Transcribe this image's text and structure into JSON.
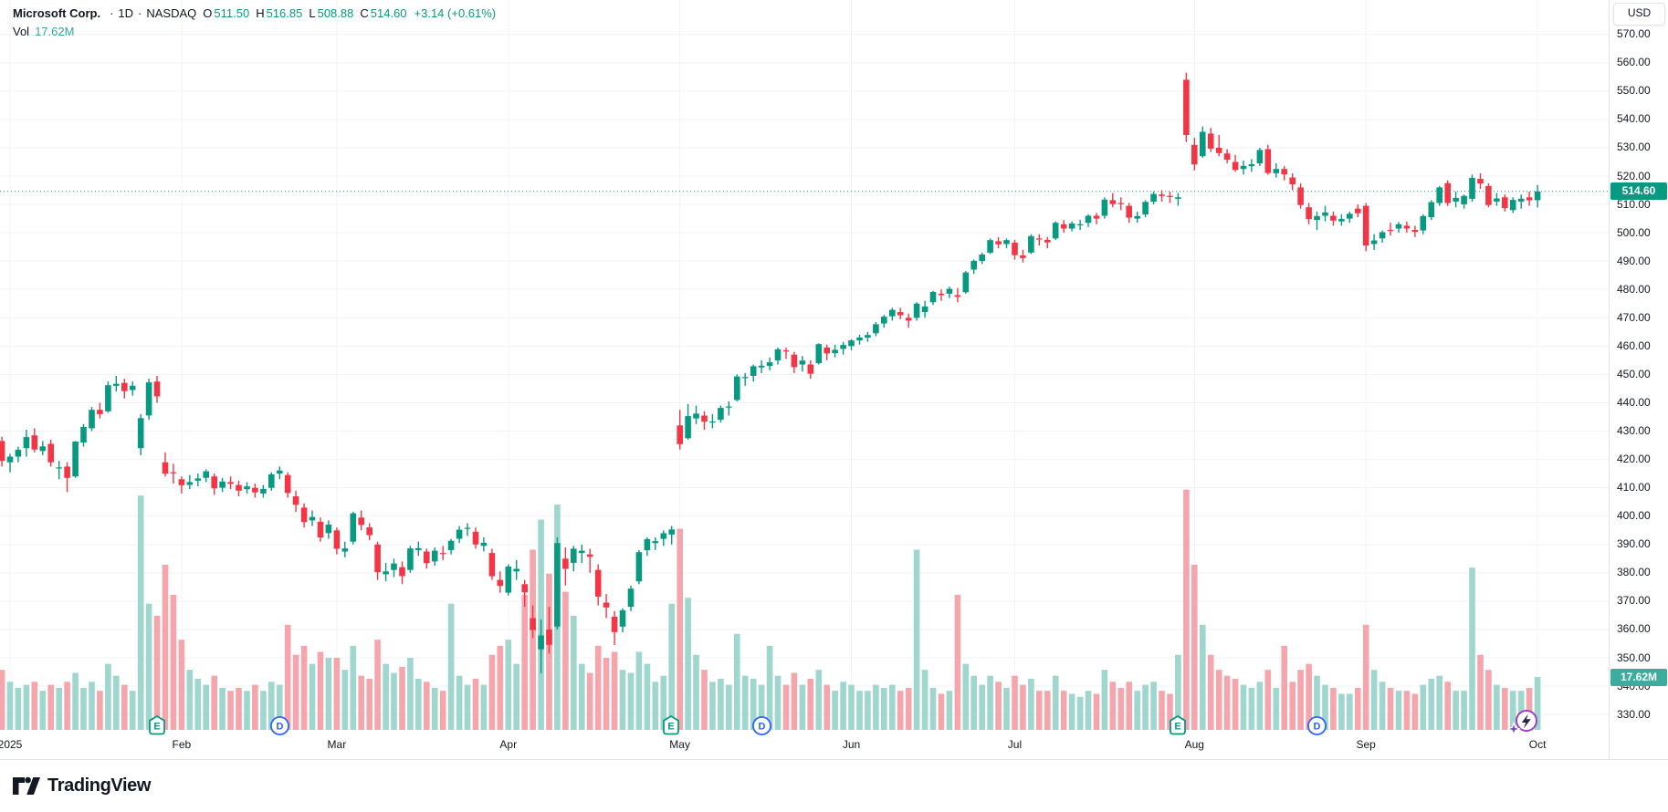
{
  "legend": {
    "name": "Microsoft Corp.",
    "dot1": "·",
    "timeframe": "1D",
    "dot2": "·",
    "exchange": "NASDAQ",
    "ohlc": [
      {
        "k": "O",
        "v": "511.50"
      },
      {
        "k": "H",
        "v": "516.85"
      },
      {
        "k": "L",
        "v": "508.88"
      },
      {
        "k": "C",
        "v": "514.60"
      }
    ],
    "change": "+3.14 (+0.61%)",
    "vol_label": "Vol",
    "vol_value": "17.62M"
  },
  "axis": {
    "currency_button": "USD",
    "price_badge": "514.60",
    "volume_badge": "17.62M"
  },
  "footer": {
    "brand": "TradingView"
  },
  "colors": {
    "up": "#089981",
    "down": "#F23645",
    "vol_up": "#9FD6CE",
    "vol_down": "#F5A6AD",
    "grid": "#F0F3FA",
    "axis_text": "#131722",
    "border": "#E0E3EB",
    "price_badge_bg": "#089981",
    "volume_badge_bg": "#3BAC9E",
    "legend_value": "#089981",
    "legend_vol_value": "#2DAB9C",
    "dividend_marker": "#2962FF",
    "earnings_marker": "#089981",
    "event_marker": "#A13FC1"
  },
  "chart_data": {
    "type": "candlestick",
    "title": "Microsoft Corp. · 1D · NASDAQ",
    "legend_ohlc": {
      "open": 511.5,
      "high": 516.85,
      "low": 508.88,
      "close": 514.6,
      "change": 3.14,
      "change_pct": 0.61,
      "volume": "17.62M"
    },
    "y_axis": {
      "currency": "USD",
      "min": 330,
      "max": 570,
      "step": 10
    },
    "x_axis_labels": [
      "2025",
      "Feb",
      "Mar",
      "Apr",
      "May",
      "Jun",
      "Jul",
      "Aug",
      "Sep",
      "Oct"
    ],
    "last_price": 514.6,
    "last_volume_millions": 17.62,
    "grid": true,
    "months": [
      {
        "label": "2025",
        "index": 2
      },
      {
        "label": "Feb",
        "index": 23
      },
      {
        "label": "Mar",
        "index": 42
      },
      {
        "label": "Apr",
        "index": 63
      },
      {
        "label": "May",
        "index": 84
      },
      {
        "label": "Jun",
        "index": 105
      },
      {
        "label": "Jul",
        "index": 125
      },
      {
        "label": "Aug",
        "index": 147
      },
      {
        "label": "Sep",
        "index": 168
      },
      {
        "label": "Oct",
        "index": 189
      }
    ],
    "markers": [
      {
        "type": "earnings",
        "glyph": "E",
        "index": 20
      },
      {
        "type": "dividend",
        "glyph": "D",
        "index": 35
      },
      {
        "type": "earnings",
        "glyph": "E",
        "index": 83
      },
      {
        "type": "dividend",
        "glyph": "D",
        "index": 94
      },
      {
        "type": "earnings",
        "glyph": "E",
        "index": 145
      },
      {
        "type": "dividend",
        "glyph": "D",
        "index": 162
      },
      {
        "type": "event-lightning",
        "glyph": "",
        "index": 187
      }
    ],
    "columns": [
      "open",
      "high",
      "low",
      "close",
      "volume_millions"
    ],
    "candles": [
      [
        428,
        429.5,
        424,
        426,
        18
      ],
      [
        426.5,
        428,
        417.5,
        419.5,
        20
      ],
      [
        419,
        422,
        415.5,
        421,
        16
      ],
      [
        421,
        424.5,
        419,
        423.4,
        14
      ],
      [
        424,
        430.5,
        421,
        427.9,
        15
      ],
      [
        428.5,
        431,
        422.5,
        423.5,
        16
      ],
      [
        423,
        426.5,
        421.5,
        424.6,
        13
      ],
      [
        425.5,
        427,
        417.5,
        419,
        15
      ],
      [
        417,
        419.5,
        413,
        417.2,
        14
      ],
      [
        417.5,
        419,
        408.5,
        413.5,
        16
      ],
      [
        414,
        426.5,
        413.5,
        426.3,
        19
      ],
      [
        426,
        432.5,
        424.5,
        431.5,
        14
      ],
      [
        431,
        438.5,
        430,
        437.5,
        16
      ],
      [
        437.5,
        440,
        434.5,
        436,
        13
      ],
      [
        437,
        447.5,
        436.5,
        446.2,
        22
      ],
      [
        446,
        449.5,
        444,
        446.7,
        18
      ],
      [
        447,
        448.5,
        441.5,
        444.1,
        15
      ],
      [
        444.5,
        447.5,
        442.5,
        446,
        13
      ],
      [
        424,
        436,
        421.5,
        434.6,
        78
      ],
      [
        435.5,
        448.5,
        434,
        447.2,
        42
      ],
      [
        447.5,
        449.5,
        440,
        442.3,
        38
      ],
      [
        419,
        422.5,
        414,
        415,
        55
      ],
      [
        415.5,
        418.5,
        411.5,
        415.1,
        45
      ],
      [
        413,
        414,
        408,
        410.9,
        30
      ],
      [
        411,
        414.5,
        409.5,
        412,
        20
      ],
      [
        412.5,
        415,
        410.5,
        413.3,
        17
      ],
      [
        413.5,
        416.5,
        412,
        415.8,
        15
      ],
      [
        414,
        415,
        407.5,
        409.8,
        18
      ],
      [
        410,
        413.5,
        408.5,
        412.2,
        14
      ],
      [
        412,
        414,
        409.5,
        411.4,
        13
      ],
      [
        411,
        412.5,
        407,
        409,
        14
      ],
      [
        409.5,
        412,
        408,
        410.5,
        13
      ],
      [
        410,
        411.5,
        406.5,
        408.4,
        15
      ],
      [
        408,
        411,
        406.5,
        409.6,
        13
      ],
      [
        410,
        415.5,
        409,
        414.8,
        16
      ],
      [
        415,
        417.5,
        413,
        416.1,
        15
      ],
      [
        414.5,
        415.5,
        406.5,
        408.2,
        35
      ],
      [
        407,
        409,
        401.5,
        404,
        25
      ],
      [
        403,
        404.5,
        396,
        397.9,
        28
      ],
      [
        398.5,
        402,
        396.5,
        399.7,
        22
      ],
      [
        398,
        399.5,
        391,
        392.5,
        26
      ],
      [
        394,
        398.5,
        392,
        397,
        24
      ],
      [
        395,
        396,
        386.5,
        388.5,
        24
      ],
      [
        387.5,
        391,
        385.5,
        388.6,
        20
      ],
      [
        391,
        401.5,
        390,
        401,
        28
      ],
      [
        399.5,
        402,
        395,
        396.9,
        18
      ],
      [
        396,
        397.5,
        391.5,
        393.3,
        17
      ],
      [
        390,
        391,
        377.5,
        380.2,
        30
      ],
      [
        379.5,
        383.5,
        377,
        380.5,
        22
      ],
      [
        381,
        385,
        378.5,
        383.3,
        19
      ],
      [
        382,
        384,
        376,
        378.8,
        21
      ],
      [
        381,
        389.5,
        380,
        388.6,
        24
      ],
      [
        388,
        391,
        386,
        388.7,
        17
      ],
      [
        387.5,
        388.5,
        381.5,
        383.4,
        16
      ],
      [
        384,
        389,
        382.5,
        387.8,
        14
      ],
      [
        387,
        389.5,
        384.5,
        386.8,
        13
      ],
      [
        388,
        392,
        386.5,
        391.3,
        42
      ],
      [
        392,
        396.5,
        390.5,
        395.2,
        18
      ],
      [
        395.5,
        397.5,
        393,
        395.9,
        15
      ],
      [
        394.5,
        396,
        388.5,
        390,
        17
      ],
      [
        389.5,
        392.5,
        387.5,
        390.6,
        15
      ],
      [
        387,
        388.5,
        377.5,
        378.8,
        25
      ],
      [
        377.5,
        380.5,
        373,
        375.4,
        28
      ],
      [
        373,
        383,
        372,
        382.2,
        30
      ],
      [
        380.5,
        384.5,
        377.5,
        381.4,
        22
      ],
      [
        376,
        377.5,
        368,
        373.1,
        45
      ],
      [
        364,
        368.5,
        357,
        359.8,
        60
      ],
      [
        353,
        363.5,
        344.5,
        357.9,
        70
      ],
      [
        360,
        368,
        351.5,
        354.6,
        52
      ],
      [
        361,
        392.5,
        360,
        390.5,
        75
      ],
      [
        385,
        389,
        375.5,
        381.4,
        46
      ],
      [
        383.5,
        389.5,
        380.5,
        388.5,
        38
      ],
      [
        387,
        390,
        383.5,
        387.8,
        22
      ],
      [
        386.5,
        388.5,
        380,
        385.7,
        19
      ],
      [
        381,
        383,
        368.5,
        371.6,
        28
      ],
      [
        369.5,
        372.5,
        364,
        367.8,
        24
      ],
      [
        364.5,
        366.5,
        354.5,
        359.1,
        26
      ],
      [
        361,
        367.5,
        359,
        366.8,
        20
      ],
      [
        368,
        375.5,
        366.5,
        374.4,
        19
      ],
      [
        377,
        388,
        376,
        387.3,
        26
      ],
      [
        388,
        392.5,
        386,
        391.9,
        22
      ],
      [
        390.5,
        392.5,
        388,
        391.2,
        16
      ],
      [
        392,
        395,
        389.5,
        394,
        18
      ],
      [
        393.5,
        396.5,
        390,
        395.3,
        42
      ],
      [
        432,
        437.5,
        423.5,
        425.4,
        67
      ],
      [
        427.5,
        439.5,
        427,
        435.3,
        44
      ],
      [
        434.5,
        439,
        432.5,
        436.2,
        25
      ],
      [
        435.5,
        437,
        430.5,
        433.3,
        20
      ],
      [
        433,
        436,
        431,
        433.4,
        16
      ],
      [
        434,
        439,
        433,
        438.2,
        17
      ],
      [
        438.5,
        440.5,
        435.5,
        438.7,
        15
      ],
      [
        441,
        450,
        440.5,
        449.3,
        32
      ],
      [
        449,
        450.5,
        446,
        449.1,
        18
      ],
      [
        449.5,
        453.5,
        447.5,
        452.9,
        17
      ],
      [
        452.5,
        455,
        450.5,
        453.1,
        15
      ],
      [
        453,
        456,
        451.5,
        454.3,
        28
      ],
      [
        455,
        459.5,
        453.5,
        458.9,
        18
      ],
      [
        458.5,
        459.5,
        455.5,
        458.2,
        15
      ],
      [
        457,
        458,
        450.5,
        452.6,
        19
      ],
      [
        453.5,
        456.5,
        451,
        454.9,
        15
      ],
      [
        453.5,
        455,
        448.5,
        450.2,
        17
      ],
      [
        454,
        461,
        453.5,
        460.7,
        20
      ],
      [
        459.5,
        460.5,
        455,
        457.4,
        15
      ],
      [
        457.5,
        460.5,
        456,
        458.7,
        13
      ],
      [
        459,
        461.5,
        457,
        460.4,
        16
      ],
      [
        460,
        462.5,
        458.5,
        462,
        15
      ],
      [
        462,
        464,
        460.5,
        463,
        13
      ],
      [
        463,
        465,
        461.5,
        463.9,
        13
      ],
      [
        464.5,
        468.5,
        463.5,
        467.7,
        15
      ],
      [
        468,
        471,
        466.5,
        470.4,
        14
      ],
      [
        470.5,
        473.5,
        469,
        472.8,
        15
      ],
      [
        472,
        473.5,
        469.5,
        470.9,
        13
      ],
      [
        470,
        471.5,
        466.5,
        469,
        14
      ],
      [
        470,
        475.5,
        469,
        475,
        60
      ],
      [
        472,
        476,
        470,
        474,
        20
      ],
      [
        475.5,
        479.5,
        474.5,
        479.1,
        14
      ],
      [
        478.5,
        480,
        476,
        478,
        12
      ],
      [
        478.5,
        481,
        477,
        480.2,
        13
      ],
      [
        478,
        480.5,
        475.5,
        477.4,
        45
      ],
      [
        479,
        486.5,
        478.5,
        486,
        22
      ],
      [
        487,
        490.5,
        485.5,
        490.1,
        18
      ],
      [
        490,
        493,
        489,
        492.3,
        15
      ],
      [
        493,
        498,
        492.5,
        497.4,
        18
      ],
      [
        497,
        498.5,
        494.5,
        495.9,
        16
      ],
      [
        496,
        498,
        494.5,
        497.4,
        14
      ],
      [
        496.5,
        497.5,
        490.5,
        492.1,
        18
      ],
      [
        492,
        494,
        489.5,
        491.1,
        15
      ],
      [
        493,
        499.5,
        492.5,
        498.8,
        17
      ],
      [
        498,
        499.5,
        495.5,
        497.7,
        13
      ],
      [
        497.5,
        498.5,
        494.5,
        496.6,
        13
      ],
      [
        498,
        504,
        497.5,
        503.5,
        18
      ],
      [
        503,
        504.5,
        500,
        501.5,
        13
      ],
      [
        501.5,
        504,
        500.5,
        503.3,
        12
      ],
      [
        503,
        504.5,
        501,
        503,
        11
      ],
      [
        503.5,
        506.5,
        502,
        506,
        13
      ],
      [
        506,
        507,
        503,
        505,
        12
      ],
      [
        506,
        512.5,
        505,
        511.7,
        20
      ],
      [
        511.5,
        514,
        509,
        510.1,
        16
      ],
      [
        510.5,
        512.5,
        508,
        510.1,
        14
      ],
      [
        509.5,
        510.5,
        503.5,
        505.3,
        16
      ],
      [
        505,
        507.5,
        503.5,
        505.9,
        13
      ],
      [
        506.5,
        511.5,
        505.5,
        510.9,
        15
      ],
      [
        511,
        514.5,
        510,
        513.7,
        16
      ],
      [
        513.5,
        515,
        511,
        513,
        13
      ],
      [
        513,
        514.5,
        510.5,
        512.6,
        12
      ],
      [
        512,
        514,
        509.5,
        512.5,
        25
      ],
      [
        554,
        556.5,
        532,
        534.5,
        80
      ],
      [
        531,
        533.5,
        522,
        524.1,
        55
      ],
      [
        527,
        537.5,
        526.5,
        535.6,
        35
      ],
      [
        535,
        537,
        528.5,
        529.7,
        25
      ],
      [
        530,
        534.5,
        527,
        528.1,
        20
      ],
      [
        528,
        529.5,
        524.5,
        525.8,
        18
      ],
      [
        525,
        527.5,
        521.5,
        522.2,
        17
      ],
      [
        522.5,
        525.5,
        520.5,
        523.6,
        15
      ],
      [
        523.5,
        526,
        521.5,
        524.2,
        14
      ],
      [
        524.5,
        530,
        523.5,
        529.2,
        16
      ],
      [
        529.5,
        531,
        520.5,
        521.1,
        20
      ],
      [
        521,
        524.5,
        519.5,
        522.5,
        14
      ],
      [
        522.5,
        523.5,
        518.5,
        520.6,
        28
      ],
      [
        519.5,
        521,
        515,
        517.1,
        16
      ],
      [
        516,
        517.5,
        508.5,
        509.8,
        20
      ],
      [
        509,
        510.5,
        503,
        504.8,
        22
      ],
      [
        504.5,
        507.5,
        501,
        505.9,
        18
      ],
      [
        506,
        509.5,
        504,
        507.2,
        15
      ],
      [
        506,
        507.5,
        502.5,
        504.3,
        14
      ],
      [
        504,
        506.5,
        502.5,
        504.9,
        12
      ],
      [
        505,
        507.5,
        503.5,
        506.7,
        12
      ],
      [
        508.5,
        510,
        505.5,
        506.9,
        14
      ],
      [
        509.5,
        510.5,
        493.5,
        495.5,
        35
      ],
      [
        496,
        499.5,
        494,
        497.3,
        20
      ],
      [
        498,
        500.8,
        496.5,
        500.2,
        16
      ],
      [
        501,
        503.5,
        499,
        500.9,
        14
      ],
      [
        501.5,
        503.8,
        500,
        503,
        13
      ],
      [
        502.5,
        504,
        500,
        501.5,
        13
      ],
      [
        501,
        502.5,
        498.5,
        500.3,
        12
      ],
      [
        500.8,
        506.5,
        499.5,
        505.9,
        15
      ],
      [
        505.5,
        511.5,
        504.5,
        510.8,
        17
      ],
      [
        510.5,
        516.5,
        509.5,
        516,
        18
      ],
      [
        517.5,
        518.5,
        509.5,
        510.5,
        16
      ],
      [
        511,
        514.5,
        509,
        512.3,
        13
      ],
      [
        510,
        513.5,
        508.5,
        513,
        13
      ],
      [
        512,
        520.5,
        511,
        519.4,
        54
      ],
      [
        519,
        521,
        515.5,
        517.4,
        25
      ],
      [
        516.5,
        517.5,
        509,
        509.8,
        20
      ],
      [
        511,
        514,
        509.5,
        512.1,
        15
      ],
      [
        512.5,
        513.5,
        507.5,
        508.7,
        14
      ],
      [
        508,
        512.5,
        507,
        511.6,
        13
      ],
      [
        511,
        513.5,
        508.5,
        512,
        13
      ],
      [
        512.5,
        514.5,
        509.5,
        511.46,
        14
      ],
      [
        511.5,
        516.85,
        508.88,
        514.6,
        17.62
      ]
    ]
  }
}
